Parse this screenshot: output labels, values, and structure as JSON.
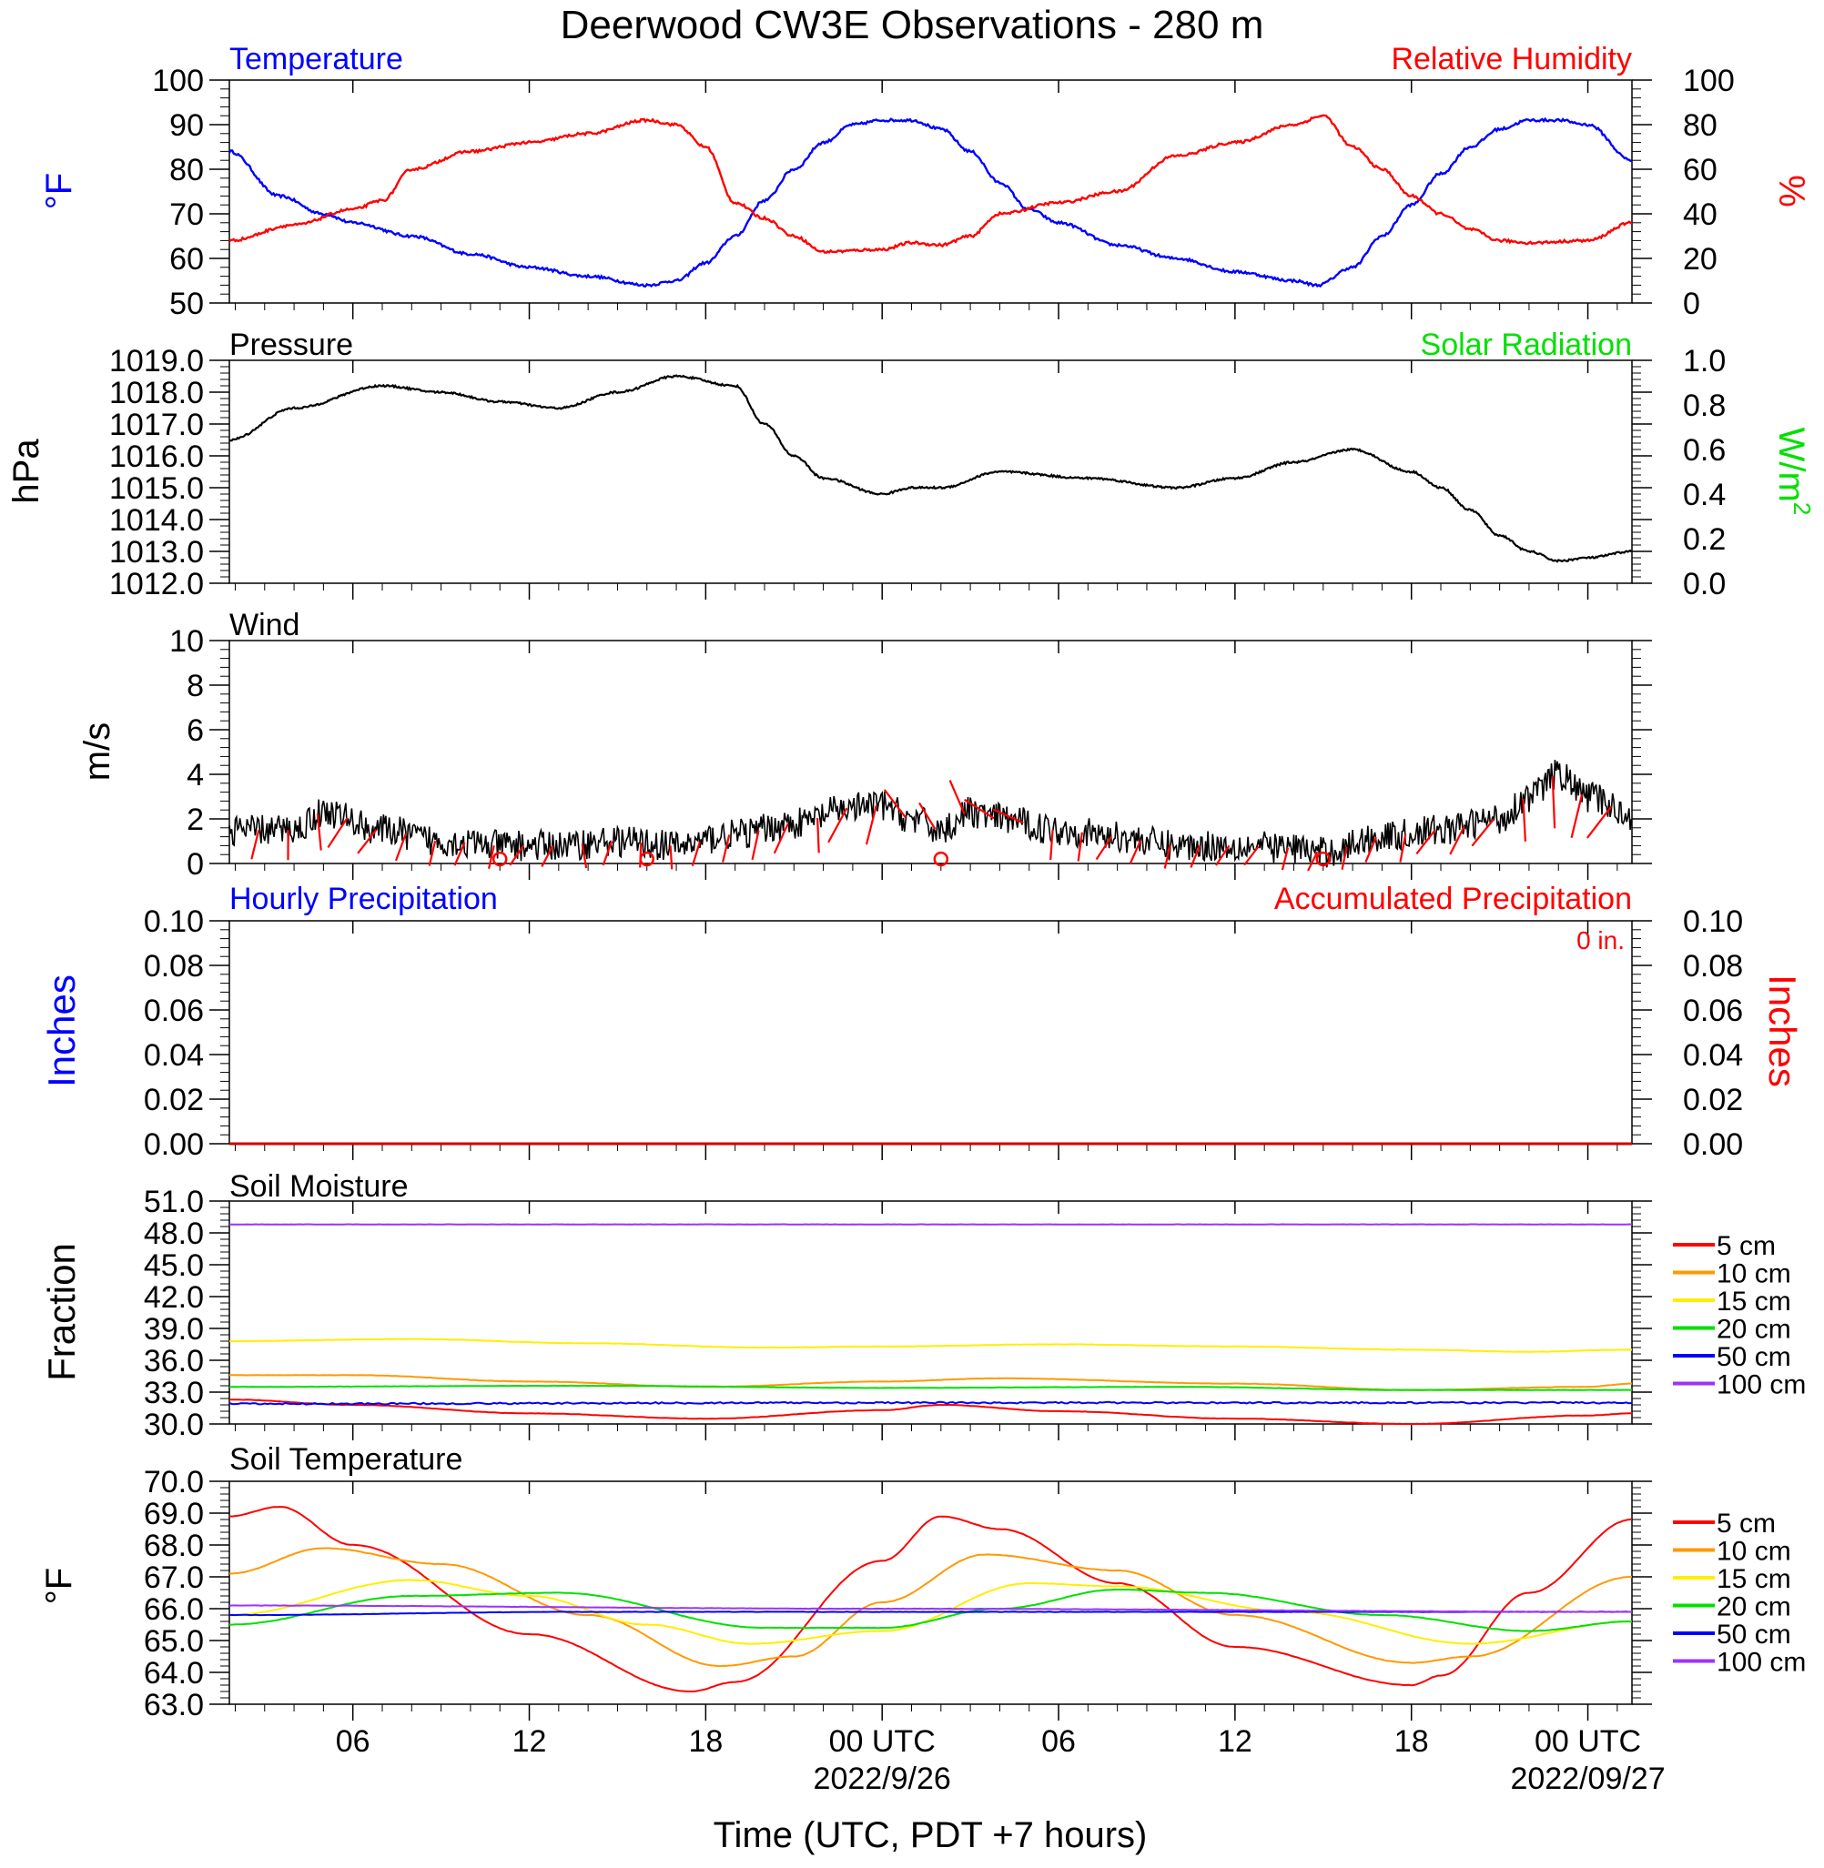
{
  "title": "Deerwood CW3E Observations - 280 m",
  "x_axis": {
    "label": "Time (UTC, PDT +7 hours)",
    "range_hours": [
      -22.2,
      25.5
    ],
    "ticks": [
      {
        "h": -18,
        "label": "06",
        "date": ""
      },
      {
        "h": -12,
        "label": "12",
        "date": ""
      },
      {
        "h": -6,
        "label": "18",
        "date": ""
      },
      {
        "h": 0,
        "label": "00 UTC",
        "date": "2022/9/26"
      },
      {
        "h": 6,
        "label": "06",
        "date": ""
      },
      {
        "h": 12,
        "label": "12",
        "date": ""
      },
      {
        "h": 18,
        "label": "18",
        "date": ""
      },
      {
        "h": 24,
        "label": "00 UTC",
        "date": "2022/09/27"
      }
    ]
  },
  "colors": {
    "blue": "#0000ff",
    "red": "#ff0000",
    "green": "#00e000",
    "black": "#000000",
    "orange": "#ff9900",
    "yellow": "#ffee00",
    "purple": "#9933ff"
  },
  "panels": {
    "temp_rh": {
      "left_title": "Temperature",
      "right_title": "Relative Humidity",
      "left_unit": "°F",
      "right_unit": "%",
      "left_ticks": [
        "100",
        "90",
        "80",
        "70",
        "60",
        "50"
      ],
      "right_ticks": [
        "100",
        "80",
        "60",
        "40",
        "20",
        "0"
      ]
    },
    "pressure": {
      "left_title": "Pressure",
      "right_title": "Solar Radiation",
      "left_unit": "hPa",
      "right_unit": "W/m²",
      "left_ticks": [
        "1019.0",
        "1018.0",
        "1017.0",
        "1016.0",
        "1015.0",
        "1014.0",
        "1013.0",
        "1012.0"
      ],
      "right_ticks": [
        "1.0",
        "0.8",
        "0.6",
        "0.4",
        "0.2",
        "0.0"
      ]
    },
    "wind": {
      "left_title": "Wind",
      "left_unit": "m/s",
      "left_ticks": [
        "10",
        "8",
        "6",
        "4",
        "2",
        "0"
      ]
    },
    "precip": {
      "left_title": "Hourly Precipitation",
      "right_title": "Accumulated Precipitation",
      "total_label": "0 in.",
      "left_unit": "Inches",
      "right_unit": "Inches",
      "left_ticks": [
        "0.10",
        "0.08",
        "0.06",
        "0.04",
        "0.02",
        "0.00"
      ],
      "right_ticks": [
        "0.10",
        "0.08",
        "0.06",
        "0.04",
        "0.02",
        "0.00"
      ]
    },
    "soil_moisture": {
      "left_title": "Soil Moisture",
      "left_unit": "Fraction",
      "left_ticks": [
        "51.0",
        "48.0",
        "45.0",
        "42.0",
        "39.0",
        "36.0",
        "33.0",
        "30.0"
      ],
      "legend": [
        "5 cm",
        "10 cm",
        "15 cm",
        "20 cm",
        "50 cm",
        "100 cm"
      ]
    },
    "soil_temp": {
      "left_title": "Soil Temperature",
      "left_unit": "°F",
      "left_ticks": [
        "70.0",
        "69.0",
        "68.0",
        "67.0",
        "66.0",
        "65.0",
        "64.0",
        "63.0"
      ],
      "legend": [
        "5 cm",
        "10 cm",
        "15 cm",
        "20 cm",
        "50 cm",
        "100 cm"
      ]
    }
  },
  "chart_data": [
    {
      "type": "line",
      "title": "Temperature",
      "ylabel": "°F",
      "ylim": [
        50,
        100
      ],
      "x_unit": "hours from 2022-09-26 00 UTC",
      "series": [
        {
          "name": "Temperature",
          "color": "#0000ff",
          "x": [
            -22.2,
            -20.5,
            -19,
            -18,
            -16,
            -14,
            -12,
            -10,
            -8,
            -7,
            -6,
            -5,
            -4,
            -3,
            -2,
            -1,
            0,
            1,
            2,
            3,
            4,
            5,
            6,
            8,
            10,
            12,
            14,
            14.8,
            16,
            17,
            18,
            19,
            20,
            21,
            22,
            23,
            24,
            25.5
          ],
          "y": [
            84,
            74,
            70,
            68,
            65,
            61,
            58,
            56,
            54,
            55,
            59,
            65,
            73,
            80,
            86,
            90,
            91,
            91,
            89,
            84,
            77,
            71,
            68,
            63,
            60,
            57,
            55,
            54,
            58,
            65,
            72,
            79,
            85,
            89,
            91,
            91,
            90,
            82
          ]
        }
      ]
    },
    {
      "type": "line",
      "title": "Relative Humidity",
      "ylabel": "%",
      "ylim": [
        0,
        100
      ],
      "series": [
        {
          "name": "Relative Humidity",
          "color": "#ff0000",
          "x": [
            -22.2,
            -20,
            -18,
            -17,
            -16,
            -14,
            -12,
            -10,
            -8,
            -7,
            -6,
            -5,
            -4,
            -3,
            -2,
            0,
            1,
            2,
            3,
            4,
            6,
            8,
            10,
            12,
            14,
            15,
            16,
            17,
            18,
            19,
            20,
            21,
            22,
            24,
            25.5
          ],
          "y": [
            28,
            35,
            42,
            46,
            60,
            68,
            72,
            76,
            82,
            80,
            70,
            45,
            38,
            30,
            23,
            24,
            27,
            26,
            30,
            40,
            45,
            50,
            66,
            72,
            80,
            84,
            70,
            60,
            48,
            40,
            33,
            28,
            27,
            28,
            36
          ]
        }
      ]
    },
    {
      "type": "line",
      "title": "Pressure",
      "ylabel": "hPa",
      "ylim": [
        1012,
        1019
      ],
      "series": [
        {
          "name": "Pressure",
          "color": "#000000",
          "x": [
            -22.2,
            -20,
            -17,
            -15,
            -13,
            -11,
            -9,
            -7,
            -5,
            -4,
            -3,
            -2,
            0,
            1,
            2,
            4,
            7,
            10,
            12,
            14,
            16,
            18,
            19,
            20,
            21,
            22,
            23,
            24,
            25.5
          ],
          "y": [
            1016.5,
            1017.5,
            1018.2,
            1018.0,
            1017.7,
            1017.5,
            1018.0,
            1018.5,
            1018.2,
            1017.0,
            1016.0,
            1015.3,
            1014.8,
            1015.0,
            1015.0,
            1015.5,
            1015.3,
            1015.0,
            1015.3,
            1015.8,
            1016.2,
            1015.5,
            1015.0,
            1014.3,
            1013.5,
            1013.0,
            1012.7,
            1012.8,
            1013.0
          ]
        }
      ]
    },
    {
      "type": "line",
      "title": "Wind",
      "ylabel": "m/s",
      "ylim": [
        0,
        10
      ],
      "series": [
        {
          "name": "Wind",
          "color": "#000000",
          "x": [
            -22.2,
            -20,
            -19,
            -17,
            -15,
            -13,
            -11,
            -9,
            -7,
            -5,
            -3,
            -1,
            0,
            1,
            2,
            3,
            4,
            6,
            8,
            10,
            12,
            14,
            15,
            17,
            19,
            21,
            22,
            23,
            24,
            25.5
          ],
          "y": [
            1.5,
            1.5,
            2.3,
            1.5,
            1.0,
            0.8,
            0.8,
            1.0,
            0.8,
            1.3,
            1.8,
            2.5,
            2.6,
            2.0,
            1.5,
            2.3,
            2.0,
            1.5,
            1.2,
            0.8,
            0.8,
            0.7,
            0.5,
            1.2,
            1.5,
            2.0,
            3.0,
            4.0,
            3.0,
            2.2
          ]
        }
      ],
      "calm_marks_hours": [
        -13,
        -8,
        2,
        15
      ]
    },
    {
      "type": "line",
      "title": "Hourly Precipitation / Accumulated Precipitation",
      "ylabel": "Inches",
      "ylim": [
        0,
        0.1
      ],
      "series": [
        {
          "name": "Accumulated Precipitation",
          "color": "#ff0000",
          "x": [
            -22.2,
            25.5
          ],
          "y": [
            0,
            0
          ]
        }
      ]
    },
    {
      "type": "line",
      "title": "Soil Moisture",
      "ylabel": "Fraction",
      "ylim": [
        30,
        51
      ],
      "series": [
        {
          "name": "5 cm",
          "color": "#ff0000",
          "x": [
            -22.2,
            -18,
            -12,
            -6,
            0,
            2,
            6,
            12,
            18,
            24,
            25.5
          ],
          "y": [
            32.3,
            31.8,
            31.0,
            30.5,
            31.3,
            31.8,
            31.2,
            30.5,
            30.0,
            30.8,
            31.0
          ]
        },
        {
          "name": "10 cm",
          "color": "#ff9900",
          "x": [
            -22.2,
            -18,
            -12,
            -6,
            0,
            4,
            12,
            18,
            24,
            25.5
          ],
          "y": [
            34.6,
            34.6,
            34.0,
            33.5,
            34.0,
            34.3,
            33.8,
            33.2,
            33.5,
            33.8
          ]
        },
        {
          "name": "15 cm",
          "color": "#ffee00",
          "x": [
            -22.2,
            -16,
            -10,
            -4,
            0,
            6,
            12,
            18,
            22,
            25.5
          ],
          "y": [
            37.8,
            38.0,
            37.6,
            37.2,
            37.3,
            37.5,
            37.3,
            37.0,
            36.8,
            37.0
          ]
        },
        {
          "name": "20 cm",
          "color": "#00e000",
          "x": [
            -22.2,
            -10,
            0,
            10,
            18,
            25.5
          ],
          "y": [
            33.5,
            33.6,
            33.4,
            33.5,
            33.2,
            33.2
          ]
        },
        {
          "name": "50 cm",
          "color": "#0000ff",
          "x": [
            -22.2,
            0,
            25.5
          ],
          "y": [
            31.9,
            32.0,
            32.0
          ]
        },
        {
          "name": "100 cm",
          "color": "#9933ff",
          "x": [
            -22.2,
            25.5
          ],
          "y": [
            48.8,
            48.8
          ]
        }
      ]
    },
    {
      "type": "line",
      "title": "Soil Temperature",
      "ylabel": "°F",
      "ylim": [
        63,
        70
      ],
      "series": [
        {
          "name": "5 cm",
          "color": "#ff0000",
          "x": [
            -22.2,
            -20.5,
            -18,
            -12,
            -6.5,
            -5,
            0,
            2,
            4,
            8,
            12,
            18,
            19,
            22,
            25.5
          ],
          "y": [
            68.9,
            69.2,
            68.0,
            65.2,
            63.4,
            63.7,
            67.5,
            68.9,
            68.5,
            66.8,
            64.8,
            63.6,
            63.9,
            66.5,
            68.8
          ]
        },
        {
          "name": "10 cm",
          "color": "#ff9900",
          "x": [
            -22.2,
            -19,
            -15,
            -10,
            -5.5,
            -3,
            0,
            3.5,
            8,
            12,
            18,
            20,
            25.5
          ],
          "y": [
            67.1,
            67.9,
            67.4,
            65.8,
            64.2,
            64.5,
            66.2,
            67.7,
            67.2,
            65.8,
            64.3,
            64.5,
            67.0
          ]
        },
        {
          "name": "15 cm",
          "color": "#ffee00",
          "x": [
            -22.2,
            -16,
            -12,
            -8,
            -4.5,
            0,
            5,
            8,
            14,
            20,
            25.5
          ],
          "y": [
            65.8,
            66.9,
            66.4,
            65.5,
            64.9,
            65.3,
            66.8,
            66.7,
            65.9,
            64.9,
            65.6
          ]
        },
        {
          "name": "20 cm",
          "color": "#00e000",
          "x": [
            -22.2,
            -16,
            -11,
            -4,
            0,
            4,
            8,
            11,
            17,
            22,
            25.5
          ],
          "y": [
            65.5,
            66.4,
            66.5,
            65.4,
            65.4,
            66.0,
            66.6,
            66.5,
            65.8,
            65.3,
            65.6
          ]
        },
        {
          "name": "50 cm",
          "color": "#0000ff",
          "x": [
            -22.2,
            -10,
            0,
            10,
            25.5
          ],
          "y": [
            65.8,
            65.9,
            65.9,
            65.9,
            65.9
          ]
        },
        {
          "name": "100 cm",
          "color": "#9933ff",
          "x": [
            -22.2,
            0,
            25.5
          ],
          "y": [
            66.1,
            66.0,
            65.9
          ]
        }
      ]
    }
  ]
}
